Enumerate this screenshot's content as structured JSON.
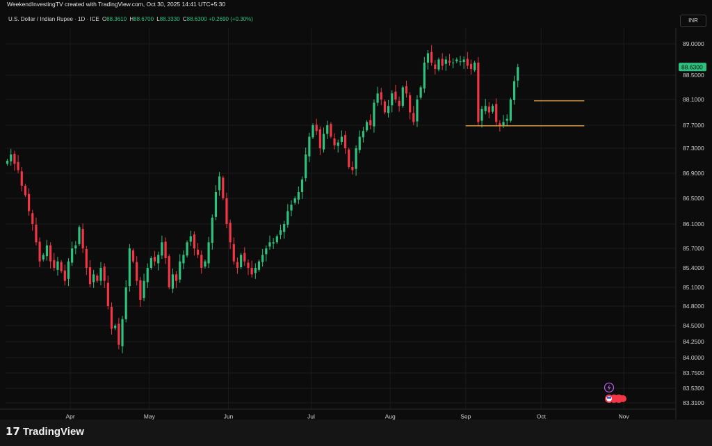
{
  "header": {
    "attribution": "WeekendInvestingTV created with TradingView.com, Oct 30, 2025 14:41 UTC+5:30"
  },
  "symbol": {
    "title": "U.S. Dollar / Indian Rupee · 1D · ICE",
    "o_label": "O",
    "o": "88.3610",
    "h_label": "H",
    "h": "88.6700",
    "l_label": "L",
    "l": "88.3330",
    "c_label": "C",
    "c": "88.6300",
    "change": "+0.2690 (+0.30%)"
  },
  "currency_button": "INR",
  "last_price": "88.6300",
  "brand": {
    "name": "TradingView"
  },
  "colors": {
    "up": "#2ec27e",
    "down": "#f23645",
    "level": "#e6a23c",
    "background": "#0c0c0c"
  },
  "chart_data": {
    "type": "candlestick",
    "title": "U.S. Dollar / Indian Rupee · 1D · ICE",
    "y_ticks": [
      "89.0000",
      "88.5000",
      "88.1000",
      "87.7000",
      "87.3000",
      "86.9000",
      "86.5000",
      "86.1000",
      "85.7000",
      "85.4000",
      "85.1000",
      "84.8000",
      "84.5000",
      "84.2500",
      "84.0000",
      "83.7500",
      "83.5300",
      "83.3100"
    ],
    "x_ticks": [
      "Apr",
      "May",
      "Jun",
      "Jul",
      "Aug",
      "Sep",
      "Oct",
      "Nov"
    ],
    "x_tick_days": [
      18,
      40,
      62,
      85,
      107,
      128,
      149,
      172
    ],
    "ylim": [
      83.31,
      89.0
    ],
    "closes": [
      87.1,
      87.2,
      87.05,
      86.95,
      86.7,
      86.55,
      86.3,
      86.1,
      85.8,
      85.5,
      85.6,
      85.75,
      85.5,
      85.4,
      85.5,
      85.35,
      85.2,
      85.5,
      85.7,
      85.75,
      86.05,
      85.7,
      85.4,
      85.15,
      85.3,
      85.2,
      85.4,
      85.2,
      84.8,
      84.45,
      84.5,
      84.2,
      84.6,
      85.1,
      85.7,
      85.5,
      85.2,
      84.9,
      85.2,
      85.4,
      85.55,
      85.5,
      85.6,
      85.8,
      85.55,
      85.1,
      85.3,
      85.2,
      85.5,
      85.6,
      85.8,
      85.9,
      85.7,
      85.6,
      85.4,
      85.5,
      85.8,
      86.2,
      86.6,
      86.85,
      86.5,
      86.1,
      85.8,
      85.5,
      85.4,
      85.6,
      85.5,
      85.4,
      85.3,
      85.4,
      85.5,
      85.6,
      85.7,
      85.8,
      85.8,
      85.9,
      86.0,
      86.1,
      86.3,
      86.4,
      86.5,
      86.6,
      86.8,
      87.2,
      87.5,
      87.7,
      87.6,
      87.3,
      87.55,
      87.7,
      87.5,
      87.35,
      87.4,
      87.5,
      87.3,
      87.0,
      86.95,
      87.3,
      87.5,
      87.6,
      87.75,
      87.7,
      88.05,
      88.2,
      88.1,
      87.9,
      88.0,
      88.2,
      88.1,
      88.0,
      88.3,
      88.2,
      87.9,
      87.75,
      88.1,
      88.3,
      88.7,
      88.85,
      88.7,
      88.6,
      88.75,
      88.65,
      88.75,
      88.7,
      88.7,
      88.75,
      88.72,
      88.75,
      88.65,
      88.6,
      88.7,
      87.75,
      87.95,
      88.0,
      87.9,
      88.0,
      87.75,
      87.7,
      87.75,
      87.8,
      88.1,
      88.4,
      88.63
    ],
    "levels": [
      {
        "price": 87.69,
        "from_day": 128,
        "to_day": 161
      },
      {
        "price": 88.08,
        "from_day": 147,
        "to_day": 161
      }
    ]
  }
}
